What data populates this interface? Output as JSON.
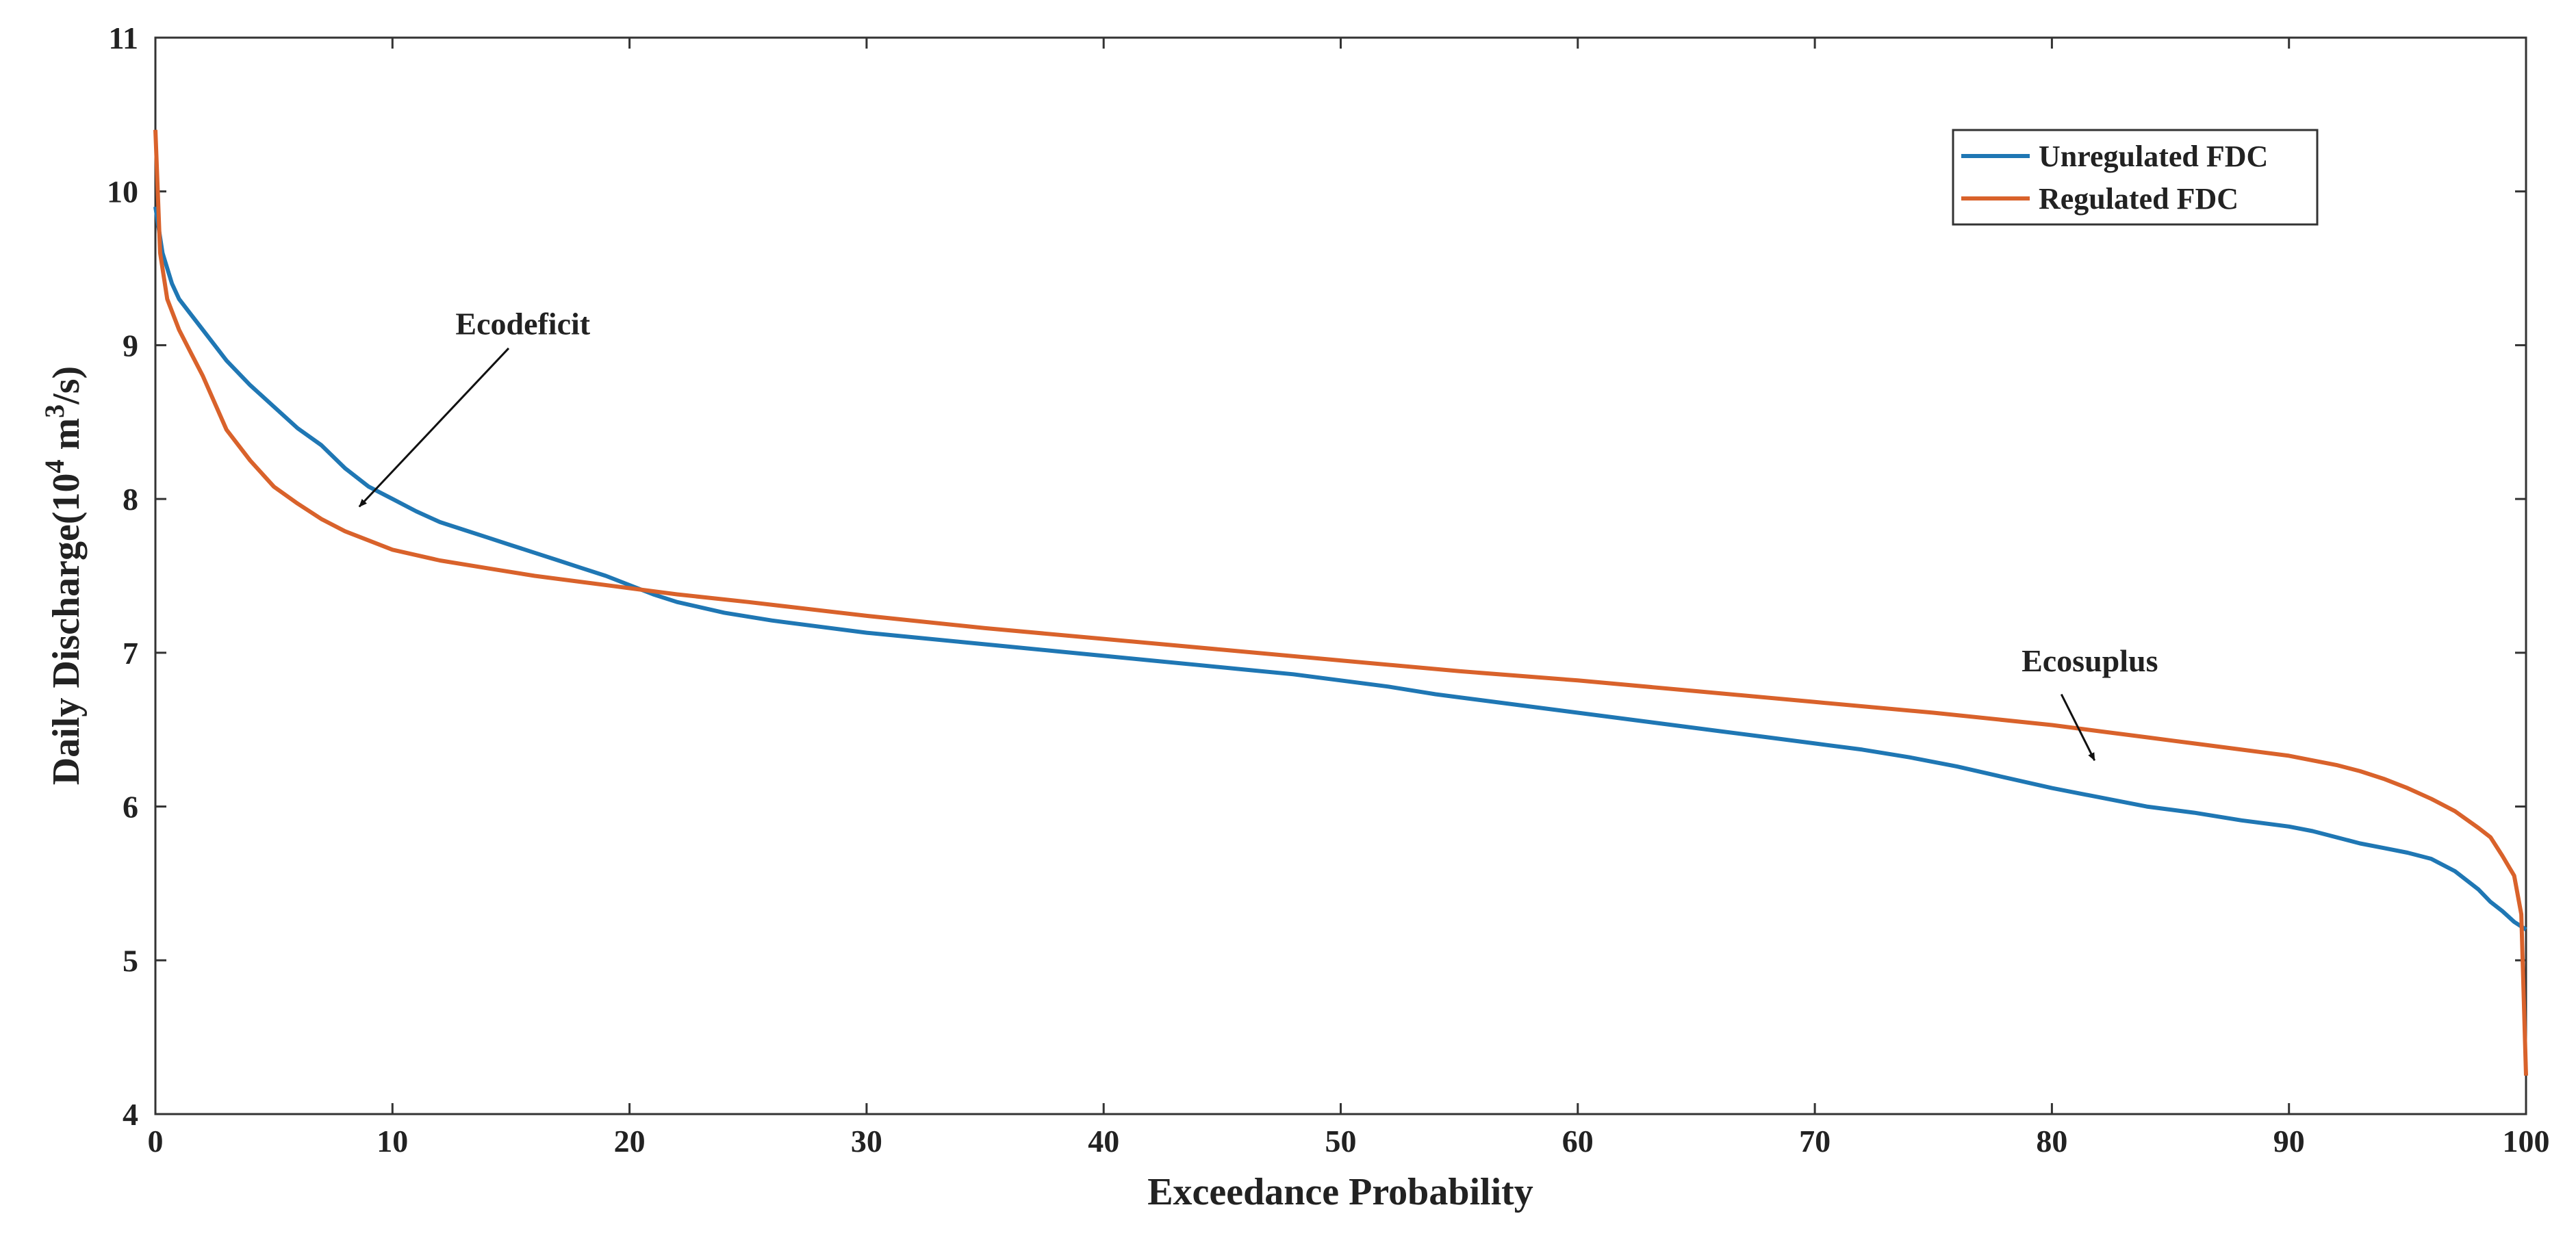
{
  "chart_data": {
    "type": "line",
    "title": "",
    "xlabel": "Exceedance Probability",
    "ylabel": {
      "prefix": "Daily Discharge(10",
      "exp1": "4",
      "mid": " m",
      "exp2": "3",
      "suffix": "/s)"
    },
    "xlim": [
      0,
      100
    ],
    "ylim": [
      4,
      11
    ],
    "xticks": [
      0,
      10,
      20,
      30,
      40,
      50,
      60,
      70,
      80,
      90,
      100
    ],
    "yticks": [
      4,
      5,
      6,
      7,
      8,
      9,
      10,
      11
    ],
    "grid": false,
    "legend_position": "top-right",
    "series": [
      {
        "name": "Unregulated FDC",
        "color": "#1f77b4",
        "x": [
          0,
          0.3,
          0.7,
          1,
          1.5,
          2,
          3,
          4,
          5,
          6,
          7,
          8,
          9,
          10,
          11,
          12,
          13,
          14,
          15,
          16,
          17,
          18,
          19,
          20,
          21,
          22,
          24,
          26,
          28,
          30,
          32,
          34,
          36,
          38,
          40,
          42,
          44,
          46,
          48,
          50,
          52,
          54,
          56,
          58,
          60,
          62,
          64,
          66,
          68,
          70,
          72,
          74,
          76,
          78,
          80,
          82,
          84,
          86,
          88,
          90,
          91,
          92,
          93,
          94,
          95,
          96,
          97,
          98,
          98.5,
          99,
          99.5,
          100
        ],
        "y": [
          9.9,
          9.6,
          9.4,
          9.3,
          9.2,
          9.1,
          8.9,
          8.74,
          8.6,
          8.46,
          8.35,
          8.2,
          8.08,
          8.0,
          7.92,
          7.85,
          7.8,
          7.75,
          7.7,
          7.65,
          7.6,
          7.55,
          7.5,
          7.44,
          7.38,
          7.33,
          7.26,
          7.21,
          7.17,
          7.13,
          7.1,
          7.07,
          7.04,
          7.01,
          6.98,
          6.95,
          6.92,
          6.89,
          6.86,
          6.82,
          6.78,
          6.73,
          6.69,
          6.65,
          6.61,
          6.57,
          6.53,
          6.49,
          6.45,
          6.41,
          6.37,
          6.32,
          6.26,
          6.19,
          6.12,
          6.06,
          6.0,
          5.96,
          5.91,
          5.87,
          5.84,
          5.8,
          5.76,
          5.73,
          5.7,
          5.66,
          5.58,
          5.46,
          5.38,
          5.32,
          5.25,
          5.2
        ]
      },
      {
        "name": "Regulated FDC",
        "color": "#d9622b",
        "x": [
          0,
          0.2,
          0.5,
          1,
          1.5,
          2,
          3,
          4,
          5,
          6,
          7,
          8,
          9,
          10,
          12,
          14,
          16,
          18,
          20,
          22,
          25,
          30,
          35,
          40,
          45,
          50,
          55,
          60,
          65,
          70,
          75,
          80,
          82,
          84,
          86,
          88,
          90,
          91,
          92,
          93,
          94,
          95,
          96,
          97,
          98,
          98.5,
          99,
          99.5,
          99.8,
          100
        ],
        "y": [
          10.4,
          9.6,
          9.3,
          9.1,
          8.95,
          8.8,
          8.45,
          8.25,
          8.08,
          7.97,
          7.87,
          7.79,
          7.73,
          7.67,
          7.6,
          7.55,
          7.5,
          7.46,
          7.42,
          7.38,
          7.33,
          7.24,
          7.16,
          7.09,
          7.02,
          6.95,
          6.88,
          6.82,
          6.75,
          6.68,
          6.61,
          6.53,
          6.49,
          6.45,
          6.41,
          6.37,
          6.33,
          6.3,
          6.27,
          6.23,
          6.18,
          6.12,
          6.05,
          5.97,
          5.86,
          5.8,
          5.68,
          5.55,
          5.3,
          4.25
        ]
      }
    ],
    "annotations": [
      {
        "text": "Ecodeficit",
        "label_x": 15.5,
        "label_y": 9.07,
        "arrow_from": [
          14.9,
          8.98
        ],
        "arrow_to": [
          8.6,
          7.95
        ]
      },
      {
        "text": "Ecosuplus",
        "label_x": 81.6,
        "label_y": 6.88,
        "arrow_from": [
          80.4,
          6.73
        ],
        "arrow_to": [
          81.8,
          6.3
        ]
      }
    ]
  }
}
